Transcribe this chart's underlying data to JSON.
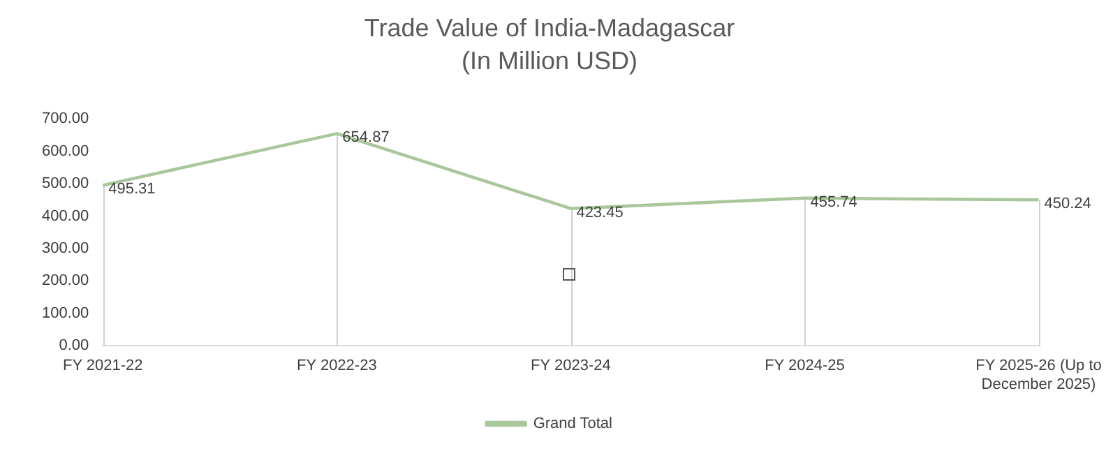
{
  "chart_data": {
    "type": "line",
    "title": "Trade Value of India-Madagascar",
    "subtitle": "(In Million USD)",
    "categories": [
      "FY 2021-22",
      "FY 2022-23",
      "FY 2023-24",
      "FY 2024-25",
      "FY 2025-26 (Up to December 2025)"
    ],
    "series": [
      {
        "name": "Grand Total",
        "color": "#a9c79a",
        "values": [
          495.31,
          654.87,
          423.45,
          455.74,
          450.24
        ]
      }
    ],
    "ylim": [
      0,
      700
    ],
    "yticks": [
      {
        "value": 0,
        "label": "0.00"
      },
      {
        "value": 100,
        "label": "100.00"
      },
      {
        "value": 200,
        "label": "200.00"
      },
      {
        "value": 300,
        "label": "300.00"
      },
      {
        "value": 400,
        "label": "400.00"
      },
      {
        "value": 500,
        "label": "500.00"
      },
      {
        "value": 600,
        "label": "600.00"
      },
      {
        "value": 700,
        "label": "700.00"
      }
    ],
    "grid": "x",
    "legend": "bottom",
    "marker": "none",
    "line_style": "solid",
    "data_labels": true
  }
}
